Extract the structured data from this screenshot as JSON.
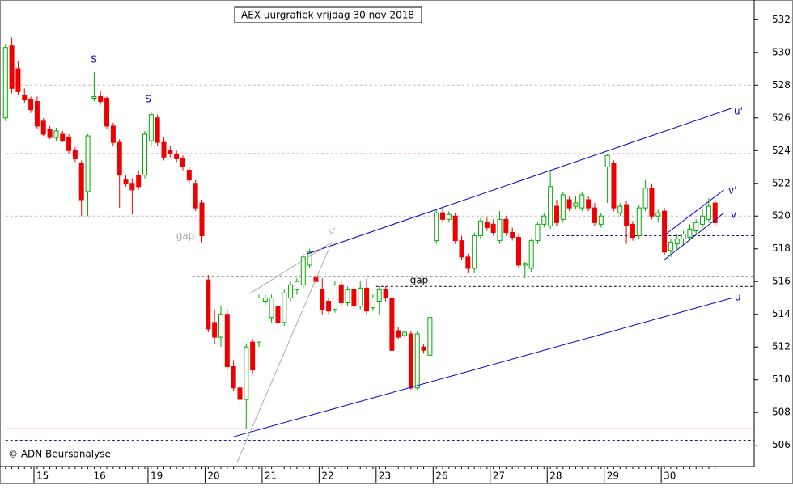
{
  "chart_data": {
    "type": "candlestick",
    "title": "AEX uurgrafiek vrijdag 30 nov 2018",
    "footer": "© ADN Beursanalyse",
    "categories": [
      null,
      null,
      null,
      null,
      null,
      "15",
      null,
      null,
      null,
      null,
      null,
      null,
      null,
      null,
      "16",
      null,
      null,
      null,
      null,
      null,
      null,
      null,
      null,
      "19",
      null,
      null,
      null,
      null,
      null,
      null,
      null,
      null,
      "20",
      null,
      null,
      null,
      null,
      null,
      null,
      null,
      null,
      "21",
      null,
      null,
      null,
      null,
      null,
      null,
      null,
      null,
      "22",
      null,
      null,
      null,
      null,
      null,
      null,
      null,
      null,
      "23",
      null,
      null,
      null,
      null,
      null,
      null,
      null,
      null,
      "26",
      null,
      null,
      null,
      null,
      null,
      null,
      null,
      null,
      "27",
      null,
      null,
      null,
      null,
      null,
      null,
      null,
      null,
      "28",
      null,
      null,
      null,
      null,
      null,
      null,
      null,
      null,
      "29",
      null,
      null,
      null,
      null,
      null,
      null,
      null,
      null,
      "30",
      null,
      null,
      null,
      null,
      null,
      null,
      null,
      null
    ],
    "candles": {
      "open": [
        526,
        530.4,
        529,
        527.4,
        527.1,
        527,
        525.8,
        525.3,
        524.8,
        525,
        524.8,
        524,
        523.2,
        521.5,
        527.2,
        527.3,
        527.2,
        525.5,
        524.5,
        522.2,
        522,
        522.5,
        522.5,
        524.6,
        526,
        524.5,
        524,
        523.8,
        523.5,
        522.8,
        522,
        520.8,
        516.1,
        513.5,
        512.6,
        514,
        510.8,
        509.5,
        508.8,
        512.3,
        512.3,
        514.8,
        513.8,
        514.5,
        513.5,
        515,
        515.5,
        515.8,
        517,
        516.3,
        515.5,
        514.8,
        514.3,
        515.8,
        514.7,
        515.5,
        514.5,
        515.6,
        514.4,
        514.8,
        515.5,
        515,
        513,
        512.7,
        512.8,
        509.5,
        512,
        511.5,
        518.5,
        520.2,
        519.8,
        520,
        518.5,
        517.5,
        516.8,
        518.8,
        519.6,
        519.5,
        518.5,
        519.8,
        519,
        518.7,
        517,
        516.8,
        518.5,
        519.5,
        519.4,
        520.6,
        519.8,
        521,
        520.6,
        520.5,
        521,
        520.5,
        519.5,
        523,
        523.2,
        520.2,
        520.7,
        519.5,
        518.8,
        520.5,
        521.7,
        520,
        520.3,
        517.9,
        518.3,
        518.6,
        518.7,
        519.1,
        519.5,
        519.8,
        520.8
      ],
      "high": [
        530.5,
        530.9,
        529.5,
        527.8,
        527.3,
        527.3,
        526,
        525.5,
        525.4,
        525.2,
        525,
        524.2,
        523.4,
        525,
        528.8,
        527.6,
        527.3,
        525.7,
        524.7,
        522.5,
        522.3,
        522.8,
        525.2,
        526.4,
        526.2,
        524.8,
        524.3,
        524,
        523.7,
        523,
        522.2,
        521,
        516.4,
        514.3,
        514.5,
        514.3,
        511.2,
        509.8,
        512.2,
        512.5,
        515.2,
        515.2,
        515.2,
        514.8,
        515.5,
        516,
        516.2,
        517.7,
        518,
        516.6,
        516.2,
        515,
        516,
        516,
        515.7,
        515.7,
        516,
        516.2,
        515.2,
        515.7,
        515.7,
        515.2,
        513.2,
        513,
        513,
        513,
        512.2,
        514,
        520.4,
        520.5,
        520.3,
        520.2,
        518.8,
        517.7,
        519,
        519.9,
        519.9,
        519.8,
        520.3,
        520,
        519.3,
        518.9,
        517.2,
        518.6,
        519.6,
        520.2,
        522.8,
        521,
        521.5,
        521.2,
        521.2,
        521.5,
        521.2,
        520.8,
        520.2,
        523.8,
        523.4,
        520.8,
        520.9,
        519.7,
        520.7,
        522.2,
        522,
        520.4,
        520.5,
        518.6,
        518.9,
        519.1,
        519.5,
        519.8,
        520.4,
        521.1,
        521
      ],
      "low": [
        525.8,
        527.5,
        527.4,
        526.9,
        526.3,
        525.3,
        524.9,
        524.7,
        524.6,
        524.5,
        523.8,
        523.3,
        520,
        520,
        527,
        526.8,
        525.3,
        524.3,
        520.5,
        521.8,
        520.1,
        521.6,
        522.3,
        524.3,
        524.3,
        523.4,
        523.6,
        523.3,
        522.8,
        522,
        520.3,
        518.4,
        512.9,
        512.2,
        512,
        510.6,
        509.3,
        508.2,
        507,
        510.4,
        512,
        514.5,
        513.5,
        513,
        513.3,
        514.8,
        515.2,
        515.6,
        516.8,
        515.8,
        514,
        514,
        514.1,
        514.5,
        514.5,
        514.3,
        514.3,
        514,
        514.2,
        514,
        514.8,
        511.7,
        512.5,
        512.6,
        509.4,
        509.4,
        511.6,
        511.4,
        518.3,
        519.6,
        519.6,
        518.3,
        517.3,
        516.5,
        516.5,
        518.6,
        519.1,
        518.8,
        518.3,
        518.8,
        518.5,
        516.8,
        516.2,
        516.6,
        518.3,
        519.3,
        519.2,
        519.4,
        519.6,
        520.3,
        520.4,
        520.3,
        520.3,
        519.4,
        519.3,
        520.8,
        520.3,
        520,
        518.3,
        518.5,
        518.6,
        520.3,
        519.8,
        519.6,
        517.6,
        517.5,
        518,
        518.2,
        518.5,
        518.9,
        519.3,
        519.6,
        519.4
      ],
      "close": [
        530.3,
        527.8,
        527.6,
        527.1,
        526.5,
        525.5,
        525,
        524.8,
        525.2,
        524.6,
        524,
        523.5,
        521,
        524.9,
        527.3,
        527,
        525.5,
        524.5,
        522.5,
        522,
        521.6,
        521.8,
        525,
        526.2,
        524.5,
        523.6,
        523.8,
        523.5,
        523,
        522.2,
        520.5,
        518.8,
        513.1,
        512.6,
        514,
        510.8,
        509.5,
        508.8,
        512,
        510.6,
        515,
        515,
        515,
        513.5,
        515.3,
        515.8,
        516,
        517.5,
        517.8,
        516,
        514.3,
        514.2,
        515.8,
        514.7,
        515.5,
        514.5,
        515.6,
        514.2,
        515,
        515.5,
        515,
        511.8,
        512.6,
        512.9,
        509.5,
        512.8,
        511.8,
        513.8,
        520.2,
        519.8,
        520.1,
        518.5,
        517.5,
        516.8,
        518.8,
        519.7,
        519.3,
        519,
        519.8,
        519,
        518.7,
        517,
        517.1,
        518.5,
        519.5,
        520,
        521.8,
        519.6,
        521.3,
        520.5,
        520.8,
        521.3,
        520.5,
        519.6,
        520,
        523.7,
        520.5,
        520.6,
        519.4,
        518.7,
        520.5,
        521.7,
        520,
        520.2,
        517.8,
        518.4,
        518.6,
        518.9,
        519.2,
        519.6,
        520,
        520.6,
        519.6
      ]
    },
    "up_color": "#00aa00",
    "down_color": "#ee0000",
    "ylim": [
      504.7,
      533.2
    ],
    "yticks": [
      506,
      508,
      510,
      512,
      514,
      516,
      518,
      520,
      522,
      524,
      526,
      528,
      530,
      532
    ],
    "levels": [
      {
        "value": 528,
        "color": "#bbbbbb",
        "start": 0
      },
      {
        "value": 520,
        "color": "#bbbbbb",
        "start": 0
      },
      {
        "value": 523.8,
        "color": "#cc00cc",
        "start": 0
      },
      {
        "value": 507,
        "color": "#cc00cc",
        "start": 0
      },
      {
        "value": 506.3,
        "color": "#000080",
        "start": 0
      },
      {
        "value": 516.3,
        "color": "#000000",
        "start": 29.5
      },
      {
        "value": 515.7,
        "color": "#000000",
        "start": 58.5
      },
      {
        "value": 518.8,
        "color": "#000080",
        "start": 85.5
      }
    ],
    "trendlines": [
      {
        "label": "u'",
        "color": "#0000cc",
        "x": [
          47.7,
          114.7
        ],
        "y": [
          517.7,
          526.6
        ]
      },
      {
        "label": "u",
        "color": "#0000cc",
        "x": [
          35.8,
          114.7
        ],
        "y": [
          506.5,
          515
        ]
      },
      {
        "label": "v'",
        "color": "#0000cc",
        "x": [
          103.9,
          113.4
        ],
        "y": [
          518.8,
          521.6
        ]
      },
      {
        "label": "v",
        "color": "#0000cc",
        "x": [
          103.9,
          113.4
        ],
        "y": [
          517.3,
          520.2
        ]
      },
      {
        "label": "s'",
        "color": "#aaaaaa",
        "x": [
          36.6,
          51.5
        ],
        "y": [
          505,
          518.4
        ]
      },
      {
        "label": null,
        "color": "#aaaaaa",
        "x": [
          38.7,
          51.5
        ],
        "y": [
          515.3,
          518.4
        ]
      }
    ],
    "annotations": [
      {
        "text": "S",
        "color": "#0000cc"
      },
      {
        "text": "S",
        "color": "#0000cc"
      },
      {
        "text": "gap",
        "color": "#aaaaaa"
      },
      {
        "text": "gap",
        "color": "#000000"
      }
    ]
  }
}
